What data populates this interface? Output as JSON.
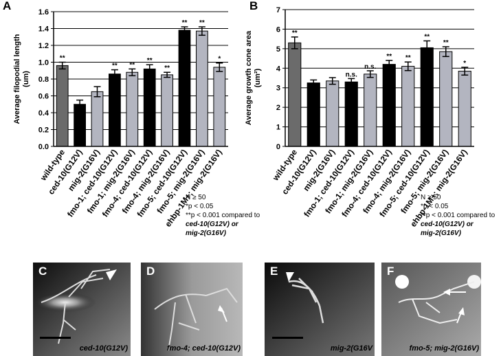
{
  "chart_data": [
    {
      "type": "bar",
      "panel": "A",
      "ylabel": [
        "Average filopodial length",
        "(um)"
      ],
      "categories": [
        "wild-type",
        "ced-10(G12V)",
        "mig-2(G16V)",
        "fmo-1; ced-10(G12V)",
        "fmo-1; mig-2(G16V)",
        "fmo-4; ced-10(G12V)",
        "fmo-4; mig-2(G16V)",
        "fmo-5; ced-10(G12V)",
        "fmo-5; mig-2(G16V)",
        "ehbp-1M+; mig-2(G16V)"
      ],
      "values": [
        0.96,
        0.5,
        0.65,
        0.86,
        0.88,
        0.92,
        0.85,
        1.38,
        1.37,
        0.94
      ],
      "errors": [
        0.04,
        0.05,
        0.06,
        0.05,
        0.04,
        0.05,
        0.03,
        0.04,
        0.05,
        0.05
      ],
      "colors": [
        "#6b6b6b",
        "#000000",
        "#b3b5c0",
        "#000000",
        "#b3b5c0",
        "#000000",
        "#b3b5c0",
        "#000000",
        "#b3b5c0",
        "#b3b5c0"
      ],
      "annotations": [
        "**",
        null,
        null,
        "**",
        "**",
        "**",
        "**",
        "**",
        "**",
        "*"
      ],
      "ylim": [
        0,
        1.6
      ],
      "yticks": [
        {
          "value": 0,
          "label": "0.0"
        },
        0.2,
        0.4,
        0.6,
        0.8,
        {
          "value": 1,
          "label": "1.0"
        },
        1.2,
        1.4,
        1.6
      ],
      "grid": true,
      "notes": [
        "N ≥ 50",
        "*p < 0.05",
        "**p < 0.001 compared to",
        "ced-10(G12V) or",
        "mig-2(G16V)"
      ]
    },
    {
      "type": "bar",
      "panel": "B",
      "ylabel": [
        "Average growth cone area",
        "(um²)"
      ],
      "categories": [
        "wild-type",
        "ced-10(G12V)",
        "mig-2(G16V)",
        "fmo-1; ced-10(G12V)",
        "fmo-1; mig-2(G16V)",
        "fmo-4; ced-10(G12V)",
        "fmo-4; mig-2(G16V)",
        "fmo-5; ced-10(G12V)",
        "fmo-5; mig-2(G16V)",
        "ehbp-1M+; mig-2(G16V)"
      ],
      "values": [
        5.3,
        3.25,
        3.35,
        3.3,
        3.7,
        4.2,
        4.1,
        5.05,
        4.85,
        3.85
      ],
      "errors": [
        0.3,
        0.15,
        0.17,
        0.17,
        0.17,
        0.2,
        0.22,
        0.35,
        0.25,
        0.2
      ],
      "colors": [
        "#6b6b6b",
        "#000000",
        "#b3b5c0",
        "#000000",
        "#b3b5c0",
        "#000000",
        "#b3b5c0",
        "#000000",
        "#b3b5c0",
        "#b3b5c0"
      ],
      "annotations": [
        "**",
        null,
        null,
        "n.s.",
        "n.s.",
        "**",
        "**",
        "**",
        "**",
        "*"
      ],
      "ylim": [
        0,
        7
      ],
      "yticks": [
        0,
        1,
        2,
        3,
        4,
        5,
        6,
        7
      ],
      "grid": true,
      "notes": [
        "N ≥ 50",
        "*p < 0.05",
        "**p < 0.001 compared to",
        "ced-10(G12V) or",
        "mig-2(G16V)"
      ]
    }
  ],
  "panels": [
    {
      "label": "C",
      "caption": "ced-10(G12V)"
    },
    {
      "label": "D",
      "caption": "fmo-4; ced-10(G12V)"
    },
    {
      "label": "E",
      "caption": "mig-2(G16V"
    },
    {
      "label": "F",
      "caption": "fmo-5; mig-2(G16V)"
    }
  ]
}
